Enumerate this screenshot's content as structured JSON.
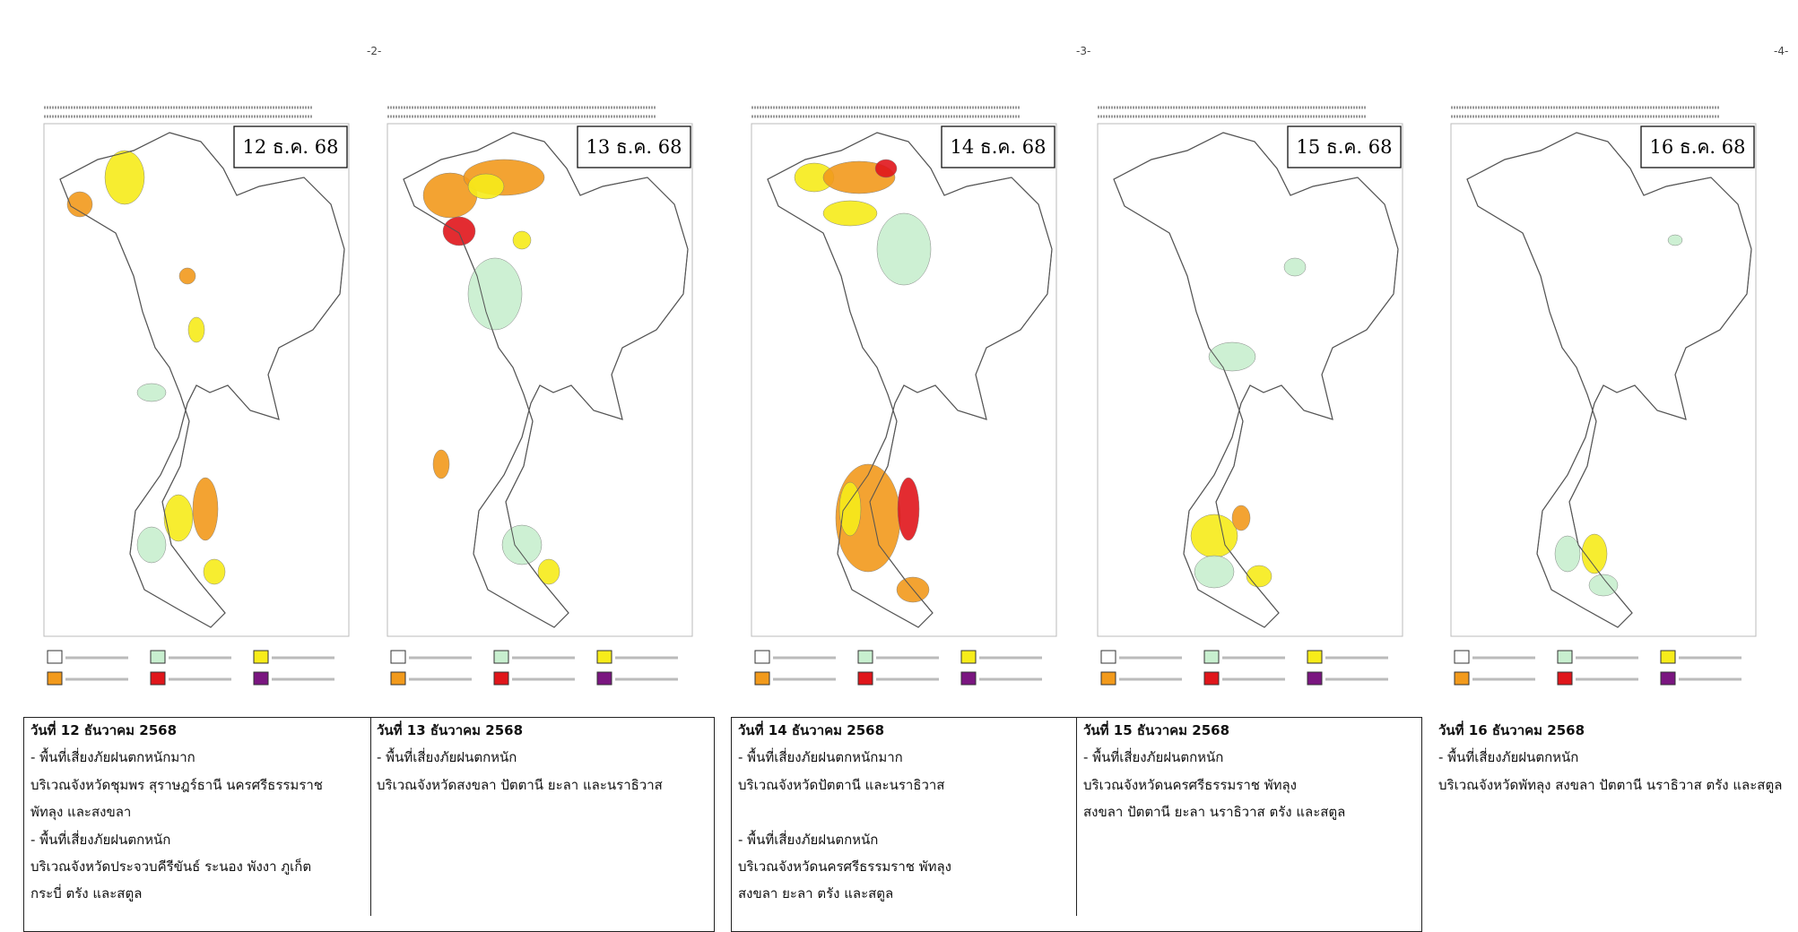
{
  "page_numbers": [
    "-2-",
    "-3-",
    "-4-"
  ],
  "panels": [
    {
      "date": "12 ธ.ค. 68",
      "title": "วันที่ 12 ธันวาคม 2568",
      "lines": [
        "- พื้นที่เสี่ยงภัยฝนตกหนักมาก",
        "บริเวณจังหวัดชุมพร สุราษฎร์ธานี นครศรีธรรมราช",
        "พัทลุง และสงขลา",
        "- พื้นที่เสี่ยงภัยฝนตกหนัก",
        "บริเวณจังหวัดประจวบคีรีขันธ์ ระนอง พังงา ภูเก็ต",
        "กระบี่ ตรัง และสตูล"
      ]
    },
    {
      "date": "13 ธ.ค. 68",
      "title": "วันที่ 13 ธันวาคม 2568",
      "lines": [
        "- พื้นที่เสี่ยงภัยฝนตกหนัก",
        "บริเวณจังหวัดสงขลา ปัตตานี ยะลา และนราธิวาส"
      ]
    },
    {
      "date": "14 ธ.ค. 68",
      "title": "วันที่ 14 ธันวาคม 2568",
      "lines": [
        "- พื้นที่เสี่ยงภัยฝนตกหนักมาก",
        "บริเวณจังหวัดปัตตานี และนราธิวาส",
        "- พื้นที่เสี่ยงภัยฝนตกหนัก",
        "บริเวณจังหวัดนครศรีธรรมราช พัทลุง",
        "สงขลา ยะลา ตรัง และสตูล"
      ]
    },
    {
      "date": "15 ธ.ค. 68",
      "title": "วันที่ 15 ธันวาคม 2568",
      "lines": [
        "- พื้นที่เสี่ยงภัยฝนตกหนัก",
        "บริเวณจังหวัดนครศรีธรรมราช พัทลุง",
        "สงขลา ปัตตานี ยะลา นราธิวาส ตรัง และสตูล"
      ]
    },
    {
      "date": "16 ธ.ค. 68",
      "title": "วันที่ 16 ธันวาคม 2568",
      "lines": [
        "- พื้นที่เสี่ยงภัยฝนตกหนัก",
        "บริเวณจังหวัดพัทลุง สงขลา ปัตตานี นราธิวาส ตรัง และสตูล"
      ]
    }
  ]
}
